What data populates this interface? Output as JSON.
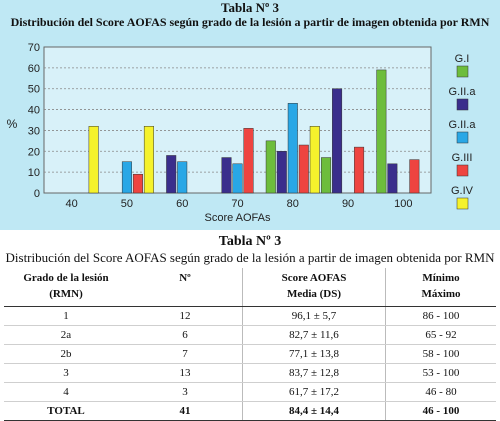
{
  "figure": {
    "title": "Tabla Nº 3",
    "subtitle": "Distribución del Score AOFAS según grado de la lesión a partir de imagen obtenida por RMN"
  },
  "chart_data": {
    "type": "bar",
    "categories": [
      "40",
      "50",
      "60",
      "70",
      "80",
      "90",
      "100"
    ],
    "series": [
      {
        "name": "G.I",
        "color": "#6dbd3c",
        "values": [
          0,
          0,
          0,
          0,
          25,
          17,
          59
        ]
      },
      {
        "name": "G.II.a",
        "color": "#3a2e8c",
        "values": [
          0,
          0,
          18,
          17,
          20,
          50,
          14
        ]
      },
      {
        "name": "G.II.a",
        "color": "#29a7e6",
        "values": [
          0,
          15,
          15,
          14,
          43,
          0,
          0
        ]
      },
      {
        "name": "G.III",
        "color": "#ee4440",
        "values": [
          0,
          9,
          0,
          31,
          23,
          22,
          16
        ]
      },
      {
        "name": "G.IV",
        "color": "#f5f22c",
        "values": [
          32,
          32,
          0,
          0,
          32,
          0,
          0
        ]
      }
    ],
    "xlabel": "Score AOFAs",
    "ylabel": "%",
    "ylim": [
      0,
      70
    ],
    "yticks": [
      "0",
      "10",
      "20",
      "30",
      "40",
      "50",
      "60",
      "70"
    ],
    "grid": true,
    "legend": "right"
  },
  "table": {
    "title": "Tabla Nº 3",
    "subtitle": "Distribución del Score AOFAS según grado de la lesión a partir de imagen obtenida por RMN",
    "headers": [
      [
        "Grado de la lesión",
        "(RMN)"
      ],
      [
        "Nº",
        ""
      ],
      [
        "Score AOFAS",
        "Media (DS)"
      ],
      [
        "Mínimo",
        "Máximo"
      ]
    ],
    "rows": [
      [
        "1",
        "12",
        "96,1 ± 5,7",
        "86 - 100"
      ],
      [
        "2a",
        "6",
        "82,7 ± 11,6",
        "65 - 92"
      ],
      [
        "2b",
        "7",
        "77,1 ± 13,8",
        "58 - 100"
      ],
      [
        "3",
        "13",
        "83,7 ± 12,8",
        "53 - 100"
      ],
      [
        "4",
        "3",
        "61,7 ± 17,2",
        "46 - 80"
      ]
    ],
    "total": [
      "TOTAL",
      "41",
      "84,4 ± 14,4",
      "46 - 100"
    ]
  }
}
